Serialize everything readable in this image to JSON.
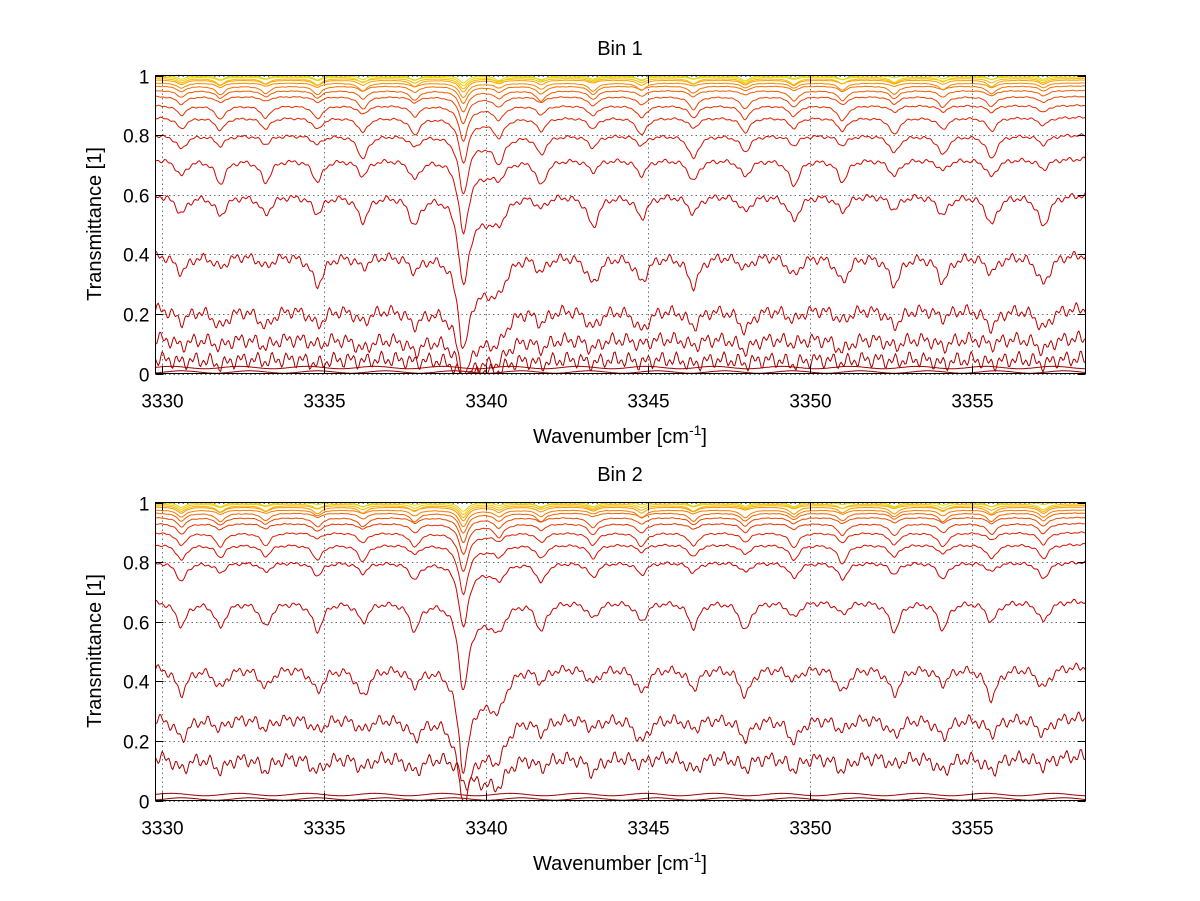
{
  "chart_data": [
    {
      "type": "line",
      "title": "Bin 1",
      "xlabel": "Wavenumber [cm",
      "xlabel_sup": "-1",
      "xlabel_close": "]",
      "ylabel": "Transmittance [1]",
      "xlim": [
        3329.8,
        3358.5
      ],
      "ylim": [
        0,
        1
      ],
      "xticks": [
        "3330",
        "3335",
        "3340",
        "3345",
        "3350",
        "3355"
      ],
      "yticks": [
        "0",
        "0.2",
        "0.4",
        "0.6",
        "0.8",
        "1"
      ],
      "grid": true,
      "line_centers": [
        3330.6,
        3331.8,
        3333.2,
        3334.8,
        3336.2,
        3337.8,
        3339.3,
        3340.4,
        3341.7,
        3343.3,
        3344.8,
        3346.4,
        3348.0,
        3349.5,
        3351.0,
        3352.6,
        3354.1,
        3355.6,
        3357.2
      ],
      "baseline_levels": [
        0.005,
        0.02,
        0.05,
        0.12,
        0.22,
        0.4,
        0.6,
        0.72,
        0.8,
        0.86,
        0.9,
        0.93,
        0.95,
        0.965,
        0.975,
        0.985,
        0.99,
        0.995,
        1.0
      ],
      "series_colors": [
        "#8b0000",
        "#9a0000",
        "#a50000",
        "#b30000",
        "#bd0000",
        "#c40000",
        "#cc0000",
        "#d10800",
        "#d61000",
        "#dc2000",
        "#e23000",
        "#e84400",
        "#ee5a00",
        "#f27000",
        "#f68800",
        "#f8a000",
        "#f9b800",
        "#f5cf00",
        "#d8dc00"
      ]
    },
    {
      "type": "line",
      "title": "Bin 2",
      "xlabel": "Wavenumber [cm",
      "xlabel_sup": "-1",
      "xlabel_close": "]",
      "ylabel": "Transmittance [1]",
      "xlim": [
        3329.8,
        3358.5
      ],
      "ylim": [
        0,
        1
      ],
      "xticks": [
        "3330",
        "3335",
        "3340",
        "3345",
        "3350",
        "3355"
      ],
      "yticks": [
        "0",
        "0.2",
        "0.4",
        "0.6",
        "0.8",
        "1"
      ],
      "grid": true,
      "line_centers": [
        3330.6,
        3331.8,
        3333.2,
        3334.8,
        3336.2,
        3337.8,
        3339.3,
        3340.4,
        3341.7,
        3343.3,
        3344.8,
        3346.4,
        3348.0,
        3349.5,
        3351.0,
        3352.6,
        3354.1,
        3355.6,
        3357.2
      ],
      "baseline_levels": [
        0.005,
        0.02,
        0.15,
        0.28,
        0.45,
        0.67,
        0.8,
        0.86,
        0.9,
        0.93,
        0.95,
        0.965,
        0.975,
        0.985,
        0.99,
        0.995,
        1.0
      ],
      "series_colors": [
        "#8b0000",
        "#9a0000",
        "#a50000",
        "#b30000",
        "#bd0000",
        "#c40000",
        "#cc0000",
        "#d41000",
        "#dc2000",
        "#e23400",
        "#e84a00",
        "#ee6200",
        "#f27c00",
        "#f69600",
        "#f8b000",
        "#f5c800",
        "#d8dc00"
      ]
    }
  ]
}
